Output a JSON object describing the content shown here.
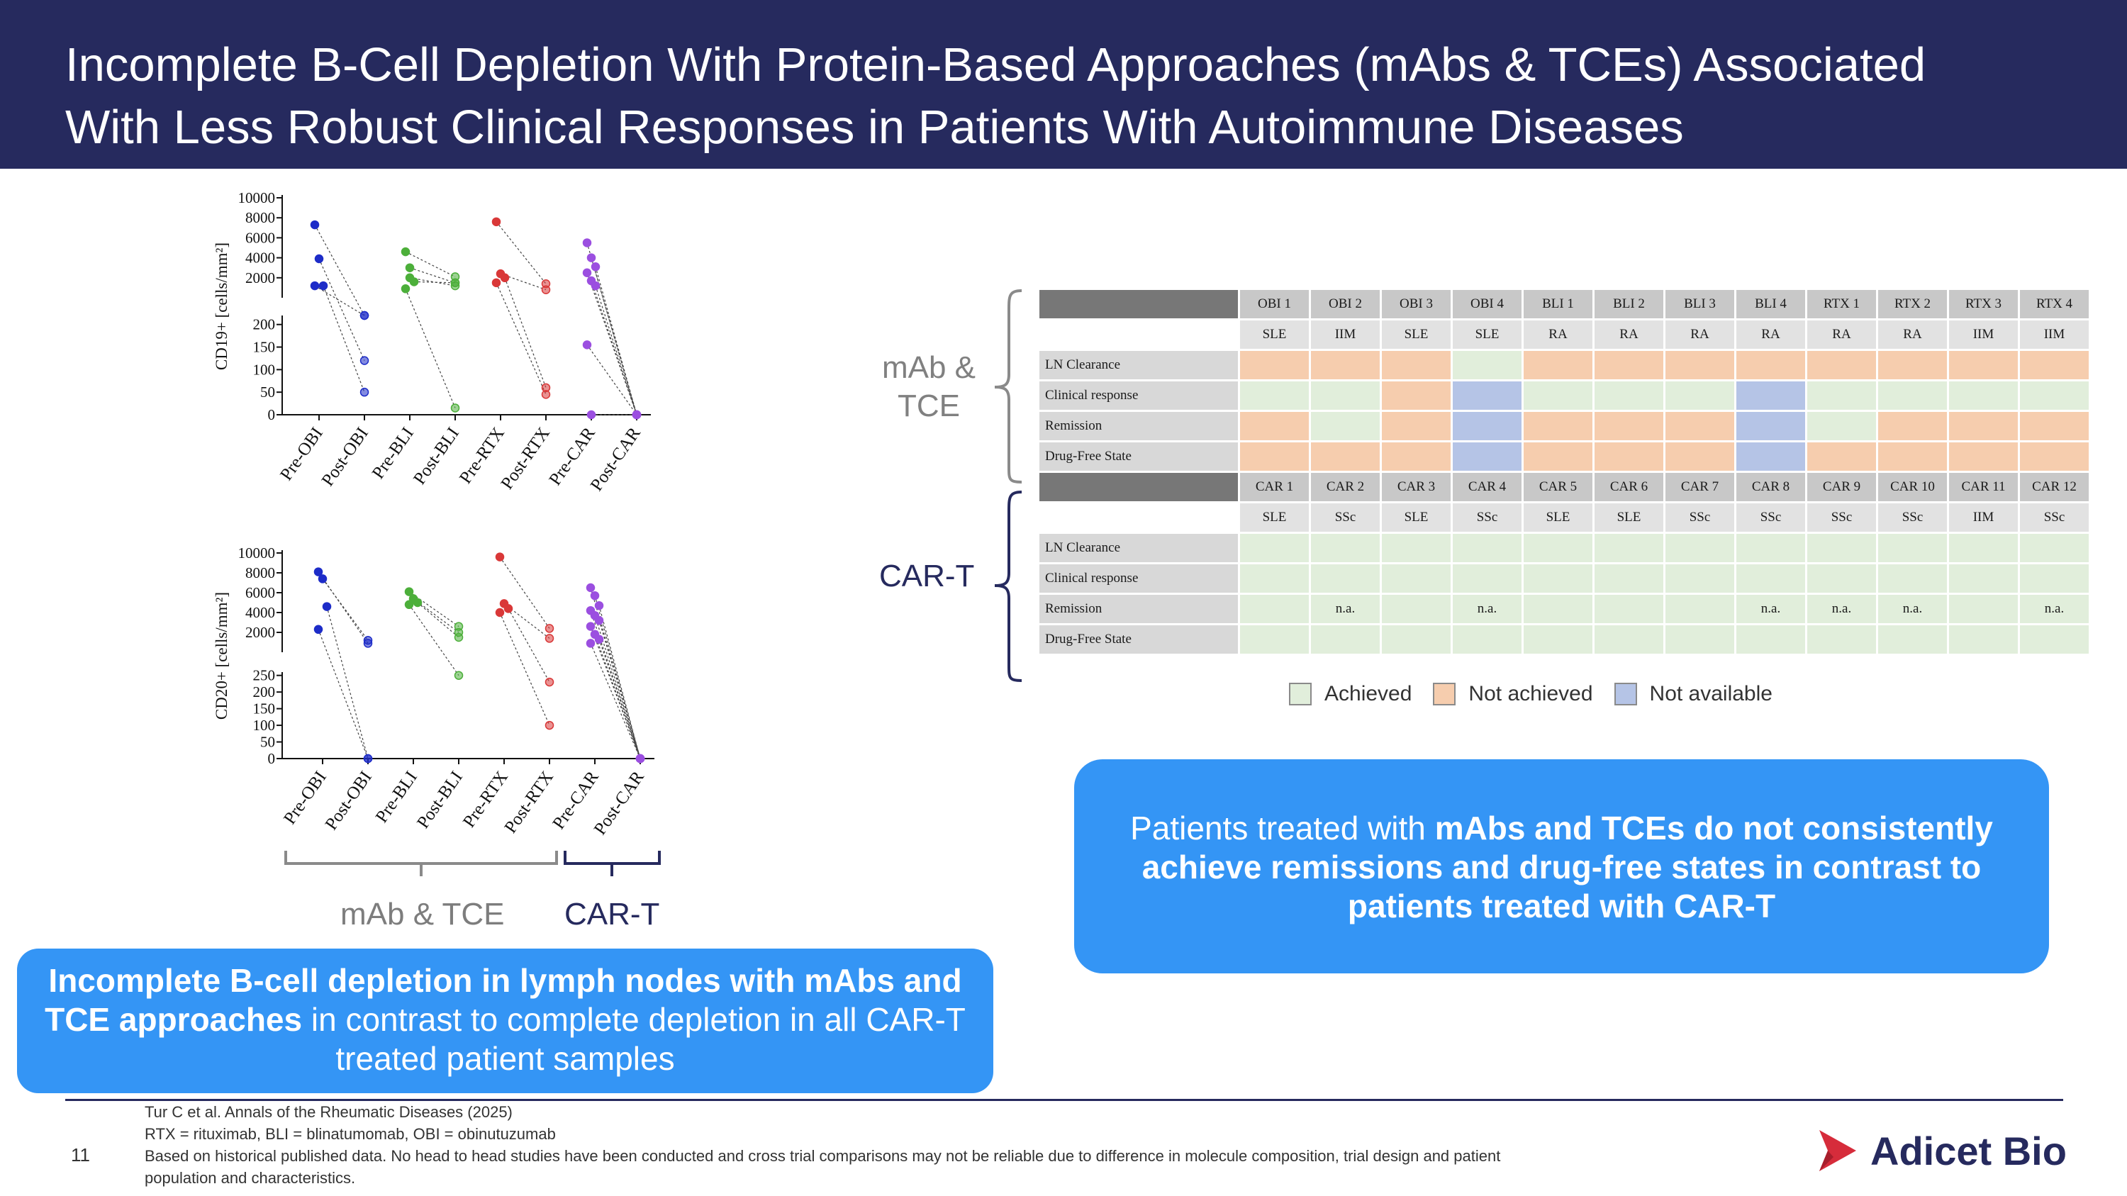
{
  "title": {
    "line1": "Incomplete B-Cell Depletion With Protein-Based Approaches (mAbs & TCEs) Associated",
    "line2": "With Less Robust Clinical Responses in Patients With Autoimmune Diseases"
  },
  "colors": {
    "header_bg": "#262a5e",
    "callout_bg": "#3495f5",
    "achieved": "#e1eedb",
    "not_achieved": "#f6cdae",
    "not_available": "#b5c4e6",
    "obi": "#1d2cc8",
    "bli": "#4caf3a",
    "rtx": "#d93838",
    "car": "#9b4fe0"
  },
  "chart_data": [
    {
      "type": "scatter",
      "ylabel": "CD19+ [cells/mm²]",
      "categories": [
        "Pre-OBI",
        "Post-OBI",
        "Pre-BLI",
        "Post-BLI",
        "Pre-RTX",
        "Post-RTX",
        "Pre-CAR",
        "Post-CAR"
      ],
      "y_upper_ticks": [
        "10000",
        "8000",
        "6000",
        "4000",
        "2000"
      ],
      "y_lower_ticks": [
        "200",
        "150",
        "100",
        "50",
        "0"
      ],
      "y_upper_range": [
        0,
        10000
      ],
      "y_lower_range": [
        0,
        220
      ],
      "series": [
        {
          "color": "#1d2cc8",
          "pairs": [
            [
              7300,
              220
            ],
            [
              3900,
              120
            ],
            [
              1200,
              50
            ],
            [
              1200,
              220
            ]
          ]
        },
        {
          "color": "#4caf3a",
          "pairs": [
            [
              4600,
              2100
            ],
            [
              3000,
              1500
            ],
            [
              1600,
              1500
            ],
            [
              900,
              15
            ],
            [
              2000,
              1200
            ]
          ]
        },
        {
          "color": "#d93838",
          "pairs": [
            [
              7600,
              1400
            ],
            [
              2400,
              800
            ],
            [
              2000,
              60
            ],
            [
              1500,
              45
            ]
          ]
        },
        {
          "color": "#9b4fe0",
          "pairs": [
            [
              5500,
              0
            ],
            [
              4000,
              0
            ],
            [
              3100,
              0
            ],
            [
              2500,
              0
            ],
            [
              1700,
              0
            ],
            [
              1200,
              0
            ],
            [
              155,
              0
            ],
            [
              0,
              0
            ]
          ]
        }
      ]
    },
    {
      "type": "scatter",
      "ylabel": "CD20+ [cells/mm²]",
      "categories": [
        "Pre-OBI",
        "Post-OBI",
        "Pre-BLI",
        "Post-BLI",
        "Pre-RTX",
        "Post-RTX",
        "Pre-CAR",
        "Post-CAR"
      ],
      "y_upper_ticks": [
        "10000",
        "8000",
        "6000",
        "4000",
        "2000"
      ],
      "y_lower_ticks": [
        "250",
        "200",
        "150",
        "100",
        "50",
        "0"
      ],
      "y_upper_range": [
        0,
        10000
      ],
      "y_lower_range": [
        0,
        260
      ],
      "series": [
        {
          "color": "#1d2cc8",
          "pairs": [
            [
              8100,
              900
            ],
            [
              7400,
              1200
            ],
            [
              4600,
              0
            ],
            [
              2300,
              0
            ]
          ]
        },
        {
          "color": "#4caf3a",
          "pairs": [
            [
              6100,
              2600
            ],
            [
              5400,
              2000
            ],
            [
              5000,
              1500
            ],
            [
              4800,
              250
            ]
          ]
        },
        {
          "color": "#d93838",
          "pairs": [
            [
              9600,
              2400
            ],
            [
              4900,
              1400
            ],
            [
              4400,
              230
            ],
            [
              4000,
              100
            ]
          ]
        },
        {
          "color": "#9b4fe0",
          "pairs": [
            [
              6500,
              0
            ],
            [
              5700,
              0
            ],
            [
              4700,
              0
            ],
            [
              4200,
              0
            ],
            [
              3700,
              0
            ],
            [
              3200,
              0
            ],
            [
              2600,
              0
            ],
            [
              1800,
              0
            ],
            [
              1300,
              0
            ],
            [
              900,
              0
            ]
          ]
        }
      ]
    }
  ],
  "chart_groups": {
    "mab_tce": "mAb & TCE",
    "car_t": "CAR-T"
  },
  "table": {
    "mab_label": "mAb &\nTCE",
    "cart_label": "CAR-T",
    "row_labels": [
      "LN Clearance",
      "Clinical response",
      "Remission",
      "Drug-Free State"
    ],
    "mab_patients": [
      "OBI 1",
      "OBI 2",
      "OBI 3",
      "OBI 4",
      "BLI 1",
      "BLI 2",
      "BLI 3",
      "BLI 4",
      "RTX 1",
      "RTX 2",
      "RTX 3",
      "RTX 4"
    ],
    "mab_diseases": [
      "SLE",
      "IIM",
      "SLE",
      "SLE",
      "RA",
      "RA",
      "RA",
      "RA",
      "RA",
      "RA",
      "IIM",
      "IIM"
    ],
    "mab_status": [
      [
        "n",
        "n",
        "n",
        "a",
        "n",
        "n",
        "n",
        "n",
        "n",
        "n",
        "n",
        "n"
      ],
      [
        "a",
        "a",
        "n",
        "v",
        "a",
        "a",
        "a",
        "v",
        "a",
        "a",
        "a",
        "a"
      ],
      [
        "n",
        "a",
        "n",
        "v",
        "n",
        "n",
        "n",
        "v",
        "a",
        "n",
        "n",
        "n"
      ],
      [
        "n",
        "n",
        "n",
        "v",
        "n",
        "n",
        "n",
        "v",
        "n",
        "n",
        "n",
        "n"
      ]
    ],
    "car_patients": [
      "CAR 1",
      "CAR 2",
      "CAR 3",
      "CAR 4",
      "CAR 5",
      "CAR 6",
      "CAR 7",
      "CAR 8",
      "CAR 9",
      "CAR 10",
      "CAR 11",
      "CAR 12"
    ],
    "car_diseases": [
      "SLE",
      "SSc",
      "SLE",
      "SSc",
      "SLE",
      "SLE",
      "SSc",
      "SSc",
      "SSc",
      "SSc",
      "IIM",
      "SSc"
    ],
    "car_remission_text": [
      "",
      "n.a.",
      "",
      "n.a.",
      "",
      "",
      "",
      "n.a.",
      "n.a.",
      "n.a.",
      "",
      "n.a."
    ],
    "legend": {
      "achieved": "Achieved",
      "not_achieved": "Not achieved",
      "not_available": "Not available"
    }
  },
  "callout_right": {
    "pre": "Patients treated with ",
    "bold": "mAbs and TCEs do not consistently achieve remissions and drug-free states in contrast to patients treated with CAR-T"
  },
  "callout_left": {
    "bold": "Incomplete B-cell depletion in lymph nodes with mAbs and TCE approaches",
    "post": " in contrast to complete depletion in all CAR-T treated patient samples"
  },
  "footer": {
    "citation": "Tur C et al. Annals of the Rheumatic Diseases (2025)",
    "abbrev": "RTX = rituximab, BLI = blinatumomab, OBI = obinutuzumab",
    "disclaimer": "Based on historical published data. No head to head studies have been conducted and cross trial comparisons may not be reliable due to difference in molecule composition, trial design and patient population and characteristics.",
    "page": "11",
    "logo_text": "Adicet Bio"
  }
}
